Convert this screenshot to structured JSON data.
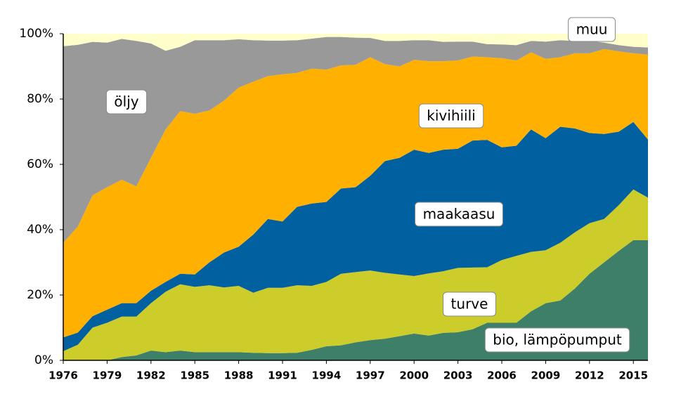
{
  "chart_data": {
    "type": "area",
    "stacked": true,
    "x": [
      1976,
      1977,
      1978,
      1979,
      1980,
      1981,
      1982,
      1983,
      1984,
      1985,
      1986,
      1987,
      1988,
      1989,
      1990,
      1991,
      1992,
      1993,
      1994,
      1995,
      1996,
      1997,
      1998,
      1999,
      2000,
      2001,
      2002,
      2003,
      2004,
      2005,
      2006,
      2007,
      2008,
      2009,
      2010,
      2011,
      2012,
      2013,
      2014,
      2015,
      2016
    ],
    "xlim": [
      1976,
      2016
    ],
    "xticks": [
      1976,
      1979,
      1982,
      1985,
      1988,
      1991,
      1994,
      1997,
      2000,
      2003,
      2006,
      2009,
      2012,
      2015
    ],
    "ylim": [
      0,
      100
    ],
    "yticks": [
      {
        "value": 0,
        "label": "0%"
      },
      {
        "value": 20,
        "label": "20%"
      },
      {
        "value": 40,
        "label": "40%"
      },
      {
        "value": 60,
        "label": "60%"
      },
      {
        "value": 80,
        "label": "80%"
      },
      {
        "value": 100,
        "label": "100%"
      }
    ],
    "series": [
      {
        "name": "bio, lämpöpumput",
        "color": "#3e7f6a",
        "values": [
          0,
          0,
          0,
          0,
          1,
          1.5,
          3,
          2.5,
          3,
          2.5,
          2.5,
          2.5,
          2.5,
          2.3,
          2.2,
          2.2,
          2.3,
          3.2,
          4.3,
          4.6,
          5.5,
          6.2,
          6.6,
          7.4,
          8.2,
          7.6,
          8.4,
          8.6,
          9.5,
          11.5,
          11.5,
          11.5,
          15,
          17.5,
          18.3,
          22,
          26.5,
          30,
          33.5,
          36.8,
          36.8
        ]
      },
      {
        "name": "turve",
        "color": "#cccc2a",
        "values": [
          2.8,
          4.8,
          10,
          11.5,
          12.4,
          11.9,
          14.5,
          18.5,
          20.3,
          20,
          20.5,
          19.8,
          20.3,
          18.4,
          20,
          20,
          20.7,
          19.6,
          19.7,
          21.9,
          21.5,
          21.3,
          20.2,
          18.9,
          17.6,
          19,
          18.9,
          19.7,
          18.9,
          17,
          19.2,
          20.5,
          18.2,
          16.2,
          17.7,
          17.2,
          15.5,
          13.3,
          14,
          15.5,
          13
        ]
      },
      {
        "name": "maakaasu",
        "color": "#0060a0",
        "values": [
          4.2,
          3.7,
          3.5,
          4,
          4.1,
          4.1,
          3.8,
          3,
          3.2,
          3.8,
          7,
          10.7,
          12,
          17.8,
          21.1,
          20.3,
          24,
          25.2,
          24.5,
          26.1,
          26,
          29,
          34.2,
          35.7,
          38.7,
          36.9,
          37.2,
          36.5,
          38.9,
          39,
          34.5,
          33.7,
          37.5,
          34.3,
          35.5,
          31.8,
          27.6,
          26,
          22.5,
          20.7,
          17.8
        ]
      },
      {
        "name": "kivihiili",
        "color": "#ffb000",
        "values": [
          29,
          32.5,
          37,
          37.5,
          37.8,
          35.8,
          40.7,
          46.7,
          49.8,
          49.2,
          46.5,
          46.5,
          48.7,
          46.8,
          43.7,
          45.1,
          41,
          41.3,
          40.5,
          37.7,
          37.5,
          36.3,
          29.7,
          28,
          27.5,
          28.1,
          27.1,
          27,
          25.7,
          25.3,
          27.3,
          26.1,
          23.6,
          24.3,
          21.3,
          23,
          24.4,
          26,
          24.6,
          21,
          26
        ]
      },
      {
        "name": "öljy",
        "color": "#999999",
        "values": [
          60.2,
          55.6,
          47,
          44.3,
          43.1,
          44.5,
          35,
          24.1,
          19.7,
          22.5,
          21.5,
          18.5,
          14.8,
          12.7,
          10.9,
          10.3,
          10,
          9.2,
          10,
          8.7,
          8.3,
          5.9,
          7.1,
          7.8,
          6,
          6.4,
          5.9,
          5.8,
          4.6,
          4,
          4.2,
          4.7,
          3.5,
          5.3,
          5.2,
          3.8,
          3.8,
          2,
          1.9,
          2,
          2.2
        ]
      },
      {
        "name": "muu",
        "color": "#ffffcc",
        "values": [
          3.8,
          3.4,
          2.5,
          2.7,
          1.6,
          2.2,
          3,
          5.2,
          4,
          2,
          2,
          2,
          1.7,
          2,
          2.1,
          2.1,
          2,
          1.5,
          1,
          1,
          1.2,
          1.3,
          2.2,
          2.2,
          2,
          2,
          2.5,
          2.4,
          2.4,
          3.2,
          3.3,
          3.5,
          2.2,
          2.4,
          2,
          2.2,
          2.2,
          2.7,
          3.5,
          4,
          4.2
        ]
      }
    ]
  }
}
